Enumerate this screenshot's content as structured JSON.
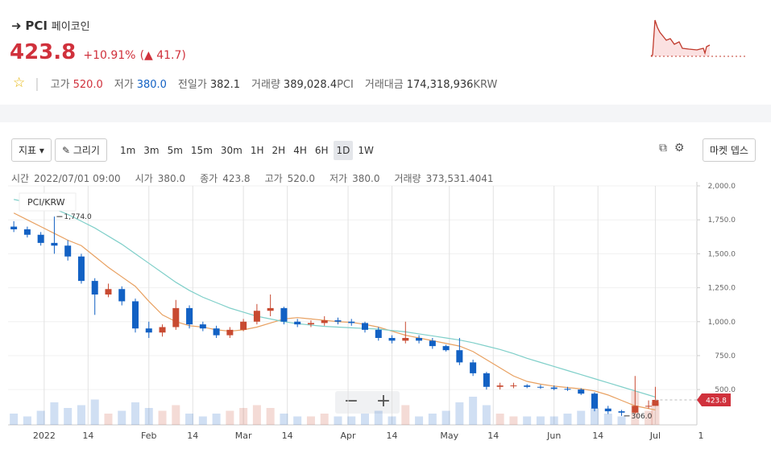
{
  "header": {
    "symbol": "PCI",
    "name": "페이코인",
    "price": "423.8",
    "change_rate": "+10.91%",
    "change_amount": "(▲ 41.7)",
    "stats": [
      {
        "label": "고가",
        "value": "520.0"
      },
      {
        "label": "저가",
        "value": "380.0"
      },
      {
        "label": "전일가",
        "value": "382.1"
      },
      {
        "label": "거래량",
        "value": "389,028.4",
        "unit": "PCI"
      },
      {
        "label": "거래대금",
        "value": "174,318,936",
        "unit": "KRW"
      }
    ]
  },
  "toolbar": {
    "indicator": "지표",
    "draw": "그리기",
    "intervals": [
      "1m",
      "3m",
      "5m",
      "15m",
      "30m",
      "1H",
      "2H",
      "4H",
      "6H",
      "1D",
      "1W"
    ],
    "selected_interval": "1D",
    "market_depth": "마켓 뎁스"
  },
  "info_row": [
    {
      "label": "시간",
      "value": "2022/07/01 09:00"
    },
    {
      "label": "시가",
      "value": "380.0"
    },
    {
      "label": "종가",
      "value": "423.8"
    },
    {
      "label": "고가",
      "value": "520.0"
    },
    {
      "label": "저가",
      "value": "380.0"
    },
    {
      "label": "거래량",
      "value": "373,531.4041"
    }
  ],
  "chart_data": {
    "type": "candlestick",
    "legend": "PCI/KRW",
    "up_color": "#c84a31",
    "down_color": "#1261c4",
    "x": [
      -9,
      -5,
      -1,
      3,
      7,
      11,
      15,
      19,
      23,
      27,
      31,
      35,
      39,
      43,
      47,
      51,
      55,
      59,
      63,
      67,
      71,
      75,
      79,
      83,
      87,
      91,
      95,
      99,
      103,
      107,
      111,
      115,
      119,
      123,
      127,
      131,
      135,
      139,
      143,
      147,
      151,
      155,
      159,
      163,
      167,
      171,
      175,
      179,
      181
    ],
    "open": [
      1700,
      1680,
      1640,
      1580,
      1560,
      1480,
      1300,
      1200,
      1240,
      1150,
      950,
      920,
      960,
      1100,
      980,
      950,
      900,
      940,
      1000,
      1080,
      1100,
      1000,
      980,
      990,
      1010,
      1000,
      990,
      940,
      880,
      860,
      880,
      860,
      820,
      790,
      700,
      620,
      520,
      530,
      530,
      520,
      515,
      505,
      500,
      470,
      360,
      340,
      330,
      380,
      380
    ],
    "high": [
      1740,
      1700,
      1660,
      1774,
      1600,
      1500,
      1320,
      1280,
      1260,
      1170,
      1000,
      980,
      1160,
      1120,
      1000,
      970,
      960,
      1020,
      1130,
      1200,
      1110,
      1020,
      1010,
      1040,
      1030,
      1020,
      1000,
      960,
      900,
      1000,
      900,
      880,
      830,
      880,
      720,
      630,
      550,
      550,
      540,
      535,
      530,
      520,
      510,
      480,
      380,
      350,
      600,
      420,
      520
    ],
    "low": [
      1660,
      1620,
      1560,
      1500,
      1450,
      1280,
      1050,
      1180,
      1120,
      920,
      880,
      890,
      940,
      950,
      930,
      880,
      880,
      930,
      980,
      1040,
      980,
      960,
      960,
      970,
      980,
      970,
      920,
      860,
      840,
      840,
      840,
      800,
      780,
      680,
      600,
      500,
      500,
      510,
      510,
      505,
      495,
      490,
      460,
      340,
      320,
      306,
      320,
      360,
      380
    ],
    "close": [
      1680,
      1640,
      1580,
      1560,
      1480,
      1300,
      1200,
      1240,
      1150,
      950,
      920,
      960,
      1100,
      980,
      950,
      900,
      940,
      1000,
      1080,
      1100,
      1000,
      980,
      990,
      1010,
      1000,
      990,
      940,
      880,
      860,
      880,
      860,
      820,
      790,
      700,
      620,
      520,
      530,
      530,
      520,
      515,
      505,
      500,
      470,
      360,
      340,
      330,
      380,
      380,
      423.8
    ],
    "volume": [
      20,
      15,
      25,
      40,
      30,
      35,
      45,
      20,
      25,
      40,
      30,
      25,
      35,
      20,
      15,
      20,
      25,
      30,
      35,
      30,
      20,
      15,
      15,
      20,
      15,
      15,
      20,
      25,
      15,
      35,
      15,
      20,
      25,
      40,
      50,
      35,
      20,
      15,
      15,
      15,
      15,
      20,
      25,
      30,
      20,
      15,
      60,
      25,
      40
    ],
    "ma_lines": [
      {
        "color": "#e8a060",
        "values": [
          1800,
          1750,
          1700,
          1650,
          1600,
          1560,
          1480,
          1400,
          1330,
          1260,
          1150,
          1050,
          1000,
          970,
          960,
          940,
          930,
          940,
          960,
          990,
          1020,
          1030,
          1020,
          1010,
          1000,
          995,
          980,
          960,
          930,
          900,
          880,
          860,
          840,
          820,
          780,
          720,
          660,
          600,
          560,
          540,
          525,
          515,
          505,
          490,
          460,
          420,
          380,
          360,
          350
        ]
      },
      {
        "color": "#7fcfc9",
        "values": [
          1900,
          1880,
          1860,
          1830,
          1790,
          1740,
          1690,
          1630,
          1570,
          1500,
          1430,
          1360,
          1290,
          1230,
          1180,
          1140,
          1100,
          1070,
          1040,
          1020,
          1000,
          985,
          975,
          965,
          960,
          955,
          950,
          945,
          935,
          925,
          910,
          895,
          880,
          865,
          845,
          820,
          795,
          765,
          730,
          700,
          670,
          640,
          610,
          580,
          550,
          520,
          490,
          460,
          445
        ]
      }
    ],
    "annotations": [
      {
        "text": "1,774.0",
        "x": 3,
        "y": 1774
      },
      {
        "text": "306.0",
        "x": 171,
        "y": 306
      }
    ],
    "last_price": {
      "value": 423.8,
      "label": "423.8"
    },
    "ylim": [
      240,
      2000
    ],
    "yticks": [
      {
        "value": 500,
        "label": "500.0"
      },
      {
        "value": 750,
        "label": "750.0"
      },
      {
        "value": 1000,
        "label": "1,000.0"
      },
      {
        "value": 1250,
        "label": "1,250.0"
      },
      {
        "value": 1500,
        "label": "1,500.0"
      },
      {
        "value": 1750,
        "label": "1,750.0"
      },
      {
        "value": 2000,
        "label": "2,000.0"
      }
    ],
    "xlim": [
      -10.7,
      193.3
    ],
    "xticks": [
      {
        "value": 0,
        "label": "2022"
      },
      {
        "value": 13,
        "label": "14"
      },
      {
        "value": 31,
        "label": "Feb"
      },
      {
        "value": 44,
        "label": "14"
      },
      {
        "value": 59,
        "label": "Mar"
      },
      {
        "value": 72,
        "label": "14"
      },
      {
        "value": 90,
        "label": "Apr"
      },
      {
        "value": 103,
        "label": "14"
      },
      {
        "value": 120,
        "label": "May"
      },
      {
        "value": 133,
        "label": "14"
      },
      {
        "value": 151,
        "label": "Jun"
      },
      {
        "value": 164,
        "label": "14"
      },
      {
        "value": 181,
        "label": "Jul"
      },
      {
        "value": 194.5,
        "label": "1"
      }
    ],
    "volume_max": 100,
    "grid": true
  }
}
